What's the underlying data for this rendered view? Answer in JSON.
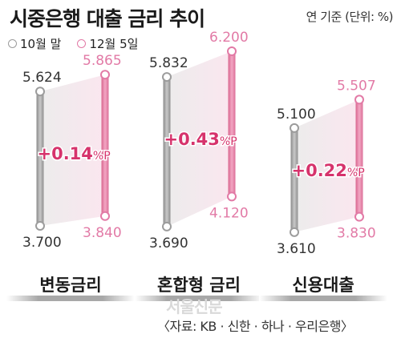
{
  "title": "시중은행 대출 금리 추이",
  "unit": "연 기준 (단위: %)",
  "legend": {
    "oct": "10월 말",
    "dec": "12월 5일"
  },
  "colors": {
    "oct": "#9c9c9c",
    "dec": "#e27aa6",
    "change": "#d6336c",
    "label_bar": "#9e9e9e"
  },
  "chart_data": {
    "type": "range-bar",
    "series": [
      {
        "name": "10월 말"
      },
      {
        "name": "12월 5일"
      }
    ],
    "groups": [
      {
        "label": "변동금리",
        "oct": {
          "min": 3.7,
          "max": 5.624
        },
        "dec": {
          "min": 3.84,
          "max": 5.865
        },
        "change": "+0.14",
        "change_unit": "%P",
        "oct_min_label": "3.700",
        "oct_max_label": "5.624",
        "dec_min_label": "3.840",
        "dec_max_label": "5.865"
      },
      {
        "label": "혼합형 금리",
        "oct": {
          "min": 3.69,
          "max": 5.832
        },
        "dec": {
          "min": 4.12,
          "max": 6.2
        },
        "change": "+0.43",
        "change_unit": "%P",
        "oct_min_label": "3.690",
        "oct_max_label": "5.832",
        "dec_min_label": "4.120",
        "dec_max_label": "6.200"
      },
      {
        "label": "신용대출",
        "oct": {
          "min": 3.61,
          "max": 5.1
        },
        "dec": {
          "min": 3.83,
          "max": 5.507
        },
        "change": "+0.22",
        "change_unit": "%P",
        "oct_min_label": "3.610",
        "oct_max_label": "5.100",
        "dec_min_label": "3.830",
        "dec_max_label": "5.507"
      }
    ]
  },
  "watermark": "서울신문",
  "credit": "〈자료: KB · 신한 · 하나 · 우리은행〉"
}
